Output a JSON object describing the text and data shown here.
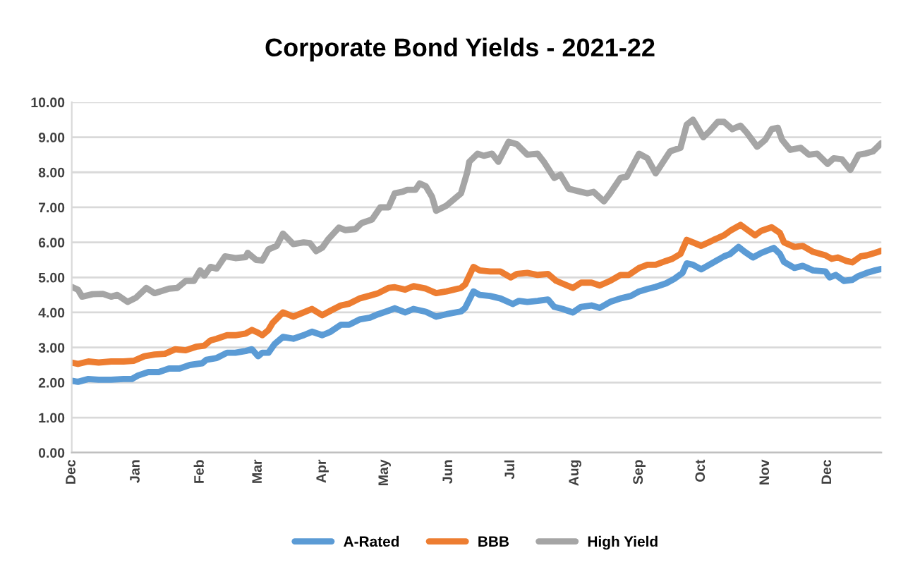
{
  "chart_data": {
    "type": "line",
    "title": "Corporate Bond Yields - 2021-22",
    "xlim": [
      "2021-12-01",
      "2022-12-27"
    ],
    "xticks": [
      {
        "value": "2021-12-01",
        "label": "Dec"
      },
      {
        "value": "2022-01-01",
        "label": "Jan"
      },
      {
        "value": "2022-02-01",
        "label": "Feb"
      },
      {
        "value": "2022-03-01",
        "label": "Mar"
      },
      {
        "value": "2022-04-01",
        "label": "Apr"
      },
      {
        "value": "2022-05-01",
        "label": "May"
      },
      {
        "value": "2022-06-01",
        "label": "Jun"
      },
      {
        "value": "2022-07-01",
        "label": "Jul"
      },
      {
        "value": "2022-08-01",
        "label": "Aug"
      },
      {
        "value": "2022-09-01",
        "label": "Sep"
      },
      {
        "value": "2022-10-01",
        "label": "Oct"
      },
      {
        "value": "2022-11-01",
        "label": "Nov"
      },
      {
        "value": "2022-12-01",
        "label": "Dec"
      }
    ],
    "ylim": [
      0,
      10
    ],
    "yticks": [
      {
        "value": 0,
        "label": "0.00"
      },
      {
        "value": 1,
        "label": "1.00"
      },
      {
        "value": 2,
        "label": "2.00"
      },
      {
        "value": 3,
        "label": "3.00"
      },
      {
        "value": 4,
        "label": "4.00"
      },
      {
        "value": 5,
        "label": "5.00"
      },
      {
        "value": 6,
        "label": "6.00"
      },
      {
        "value": 7,
        "label": "7.00"
      },
      {
        "value": 8,
        "label": "8.00"
      },
      {
        "value": 9,
        "label": "9.00"
      },
      {
        "value": 10,
        "label": "10.00"
      }
    ],
    "grid": "y",
    "legend": "bottom",
    "marker": "none",
    "line_style": "solid",
    "series": [
      {
        "name": "A-Rated",
        "color": "#5b9bd5",
        "x": [
          "2021-12-01",
          "2021-12-04",
          "2021-12-09",
          "2021-12-14",
          "2021-12-20",
          "2021-12-26",
          "2021-12-30",
          "2022-01-02",
          "2022-01-07",
          "2022-01-12",
          "2022-01-17",
          "2022-01-22",
          "2022-01-27",
          "2022-02-02",
          "2022-02-04",
          "2022-02-09",
          "2022-02-14",
          "2022-02-18",
          "2022-02-23",
          "2022-02-26",
          "2022-03-01",
          "2022-03-03",
          "2022-03-06",
          "2022-03-09",
          "2022-03-13",
          "2022-03-18",
          "2022-03-23",
          "2022-03-27",
          "2022-04-01",
          "2022-04-05",
          "2022-04-10",
          "2022-04-14",
          "2022-04-19",
          "2022-04-24",
          "2022-04-28",
          "2022-05-03",
          "2022-05-06",
          "2022-05-11",
          "2022-05-15",
          "2022-05-21",
          "2022-05-26",
          "2022-05-31",
          "2022-06-07",
          "2022-06-09",
          "2022-06-13",
          "2022-06-16",
          "2022-06-21",
          "2022-06-26",
          "2022-07-02",
          "2022-07-05",
          "2022-07-09",
          "2022-07-14",
          "2022-07-19",
          "2022-07-22",
          "2022-07-26",
          "2022-07-31",
          "2022-08-04",
          "2022-08-09",
          "2022-08-13",
          "2022-08-18",
          "2022-08-23",
          "2022-08-28",
          "2022-09-01",
          "2022-09-05",
          "2022-09-09",
          "2022-09-14",
          "2022-09-18",
          "2022-09-22",
          "2022-09-24",
          "2022-09-27",
          "2022-10-01",
          "2022-10-07",
          "2022-10-12",
          "2022-10-15",
          "2022-10-19",
          "2022-10-22",
          "2022-10-26",
          "2022-10-30",
          "2022-11-05",
          "2022-11-08",
          "2022-11-10",
          "2022-11-15",
          "2022-11-19",
          "2022-11-24",
          "2022-11-30",
          "2022-12-02",
          "2022-12-05",
          "2022-12-09",
          "2022-12-13",
          "2022-12-16",
          "2022-12-20",
          "2022-12-24",
          "2022-12-27"
        ],
        "values": [
          2.05,
          2.02,
          2.1,
          2.08,
          2.08,
          2.1,
          2.1,
          2.2,
          2.3,
          2.3,
          2.4,
          2.4,
          2.5,
          2.55,
          2.65,
          2.7,
          2.85,
          2.85,
          2.9,
          2.95,
          2.75,
          2.85,
          2.85,
          3.1,
          3.3,
          3.25,
          3.35,
          3.45,
          3.35,
          3.45,
          3.65,
          3.65,
          3.8,
          3.85,
          3.95,
          4.05,
          4.12,
          4.0,
          4.1,
          4.02,
          3.88,
          3.95,
          4.03,
          4.13,
          4.6,
          4.5,
          4.47,
          4.4,
          4.24,
          4.33,
          4.3,
          4.33,
          4.37,
          4.16,
          4.1,
          4.0,
          4.16,
          4.2,
          4.13,
          4.3,
          4.4,
          4.47,
          4.6,
          4.67,
          4.73,
          4.83,
          4.96,
          5.13,
          5.4,
          5.36,
          5.23,
          5.43,
          5.6,
          5.67,
          5.87,
          5.73,
          5.57,
          5.7,
          5.84,
          5.67,
          5.44,
          5.27,
          5.33,
          5.2,
          5.17,
          5.0,
          5.07,
          4.9,
          4.93,
          5.04,
          5.13,
          5.2,
          5.24
        ]
      },
      {
        "name": "BBB",
        "color": "#ed7d31",
        "x": [
          "2021-12-01",
          "2021-12-04",
          "2021-12-09",
          "2021-12-14",
          "2021-12-20",
          "2021-12-26",
          "2021-12-31",
          "2022-01-05",
          "2022-01-10",
          "2022-01-15",
          "2022-01-20",
          "2022-01-25",
          "2022-01-30",
          "2022-02-03",
          "2022-02-06",
          "2022-02-09",
          "2022-02-14",
          "2022-02-18",
          "2022-02-23",
          "2022-02-26",
          "2022-03-01",
          "2022-03-03",
          "2022-03-06",
          "2022-03-08",
          "2022-03-13",
          "2022-03-18",
          "2022-03-23",
          "2022-03-27",
          "2022-04-01",
          "2022-04-05",
          "2022-04-10",
          "2022-04-14",
          "2022-04-19",
          "2022-04-24",
          "2022-04-28",
          "2022-05-03",
          "2022-05-06",
          "2022-05-11",
          "2022-05-15",
          "2022-05-21",
          "2022-05-26",
          "2022-05-31",
          "2022-06-07",
          "2022-06-09",
          "2022-06-13",
          "2022-06-16",
          "2022-06-21",
          "2022-06-26",
          "2022-07-01",
          "2022-07-04",
          "2022-07-09",
          "2022-07-14",
          "2022-07-19",
          "2022-07-23",
          "2022-07-27",
          "2022-07-31",
          "2022-08-04",
          "2022-08-09",
          "2022-08-13",
          "2022-08-18",
          "2022-08-23",
          "2022-08-27",
          "2022-09-01",
          "2022-09-05",
          "2022-09-09",
          "2022-09-14",
          "2022-09-17",
          "2022-09-21",
          "2022-09-24",
          "2022-09-27",
          "2022-10-01",
          "2022-10-07",
          "2022-10-12",
          "2022-10-15",
          "2022-10-20",
          "2022-10-23",
          "2022-10-27",
          "2022-10-30",
          "2022-11-04",
          "2022-11-08",
          "2022-11-10",
          "2022-11-15",
          "2022-11-19",
          "2022-11-24",
          "2022-11-30",
          "2022-12-03",
          "2022-12-06",
          "2022-12-10",
          "2022-12-13",
          "2022-12-17",
          "2022-12-20",
          "2022-12-24",
          "2022-12-27"
        ],
        "values": [
          2.57,
          2.53,
          2.6,
          2.57,
          2.6,
          2.6,
          2.62,
          2.75,
          2.8,
          2.82,
          2.95,
          2.92,
          3.02,
          3.05,
          3.2,
          3.25,
          3.35,
          3.35,
          3.4,
          3.5,
          3.42,
          3.35,
          3.5,
          3.7,
          4.0,
          3.88,
          4.0,
          4.1,
          3.92,
          4.05,
          4.2,
          4.25,
          4.4,
          4.48,
          4.55,
          4.7,
          4.72,
          4.65,
          4.75,
          4.68,
          4.55,
          4.6,
          4.7,
          4.8,
          5.3,
          5.2,
          5.17,
          5.17,
          5.0,
          5.1,
          5.13,
          5.07,
          5.1,
          4.9,
          4.8,
          4.7,
          4.85,
          4.85,
          4.77,
          4.9,
          5.07,
          5.07,
          5.27,
          5.36,
          5.36,
          5.47,
          5.53,
          5.67,
          6.07,
          6.0,
          5.9,
          6.07,
          6.2,
          6.33,
          6.5,
          6.37,
          6.2,
          6.33,
          6.43,
          6.27,
          6.0,
          5.87,
          5.9,
          5.73,
          5.63,
          5.53,
          5.57,
          5.47,
          5.43,
          5.6,
          5.63,
          5.7,
          5.76
        ]
      },
      {
        "name": "High Yield",
        "color": "#a5a5a5",
        "x": [
          "2021-12-01",
          "2021-12-04",
          "2021-12-06",
          "2021-12-11",
          "2021-12-16",
          "2021-12-20",
          "2021-12-23",
          "2021-12-28",
          "2022-01-01",
          "2022-01-06",
          "2022-01-10",
          "2022-01-17",
          "2022-01-21",
          "2022-01-25",
          "2022-01-29",
          "2022-02-01",
          "2022-02-03",
          "2022-02-06",
          "2022-02-09",
          "2022-02-13",
          "2022-02-18",
          "2022-02-23",
          "2022-02-24",
          "2022-02-28",
          "2022-03-03",
          "2022-03-06",
          "2022-03-10",
          "2022-03-13",
          "2022-03-18",
          "2022-03-23",
          "2022-03-26",
          "2022-03-29",
          "2022-04-01",
          "2022-04-04",
          "2022-04-09",
          "2022-04-12",
          "2022-04-17",
          "2022-04-20",
          "2022-04-25",
          "2022-04-29",
          "2022-05-03",
          "2022-05-06",
          "2022-05-10",
          "2022-05-12",
          "2022-05-16",
          "2022-05-18",
          "2022-05-21",
          "2022-05-24",
          "2022-05-26",
          "2022-05-31",
          "2022-06-07",
          "2022-06-10",
          "2022-06-11",
          "2022-06-15",
          "2022-06-18",
          "2022-06-22",
          "2022-06-25",
          "2022-06-30",
          "2022-07-04",
          "2022-07-09",
          "2022-07-14",
          "2022-07-17",
          "2022-07-22",
          "2022-07-25",
          "2022-07-29",
          "2022-08-02",
          "2022-08-07",
          "2022-08-10",
          "2022-08-15",
          "2022-08-18",
          "2022-08-23",
          "2022-08-26",
          "2022-09-01",
          "2022-09-05",
          "2022-09-09",
          "2022-09-13",
          "2022-09-16",
          "2022-09-21",
          "2022-09-24",
          "2022-09-27",
          "2022-10-02",
          "2022-10-05",
          "2022-10-09",
          "2022-10-12",
          "2022-10-16",
          "2022-10-20",
          "2022-10-23",
          "2022-10-28",
          "2022-11-01",
          "2022-11-04",
          "2022-11-07",
          "2022-11-09",
          "2022-11-13",
          "2022-11-18",
          "2022-11-22",
          "2022-11-26",
          "2022-12-01",
          "2022-12-04",
          "2022-12-08",
          "2022-12-12",
          "2022-12-16",
          "2022-12-19",
          "2022-12-23",
          "2022-12-27"
        ],
        "values": [
          4.73,
          4.65,
          4.45,
          4.52,
          4.53,
          4.45,
          4.5,
          4.3,
          4.42,
          4.7,
          4.55,
          4.68,
          4.7,
          4.9,
          4.9,
          5.2,
          5.05,
          5.3,
          5.25,
          5.6,
          5.55,
          5.58,
          5.7,
          5.5,
          5.48,
          5.8,
          5.9,
          6.25,
          5.95,
          6.0,
          5.98,
          5.75,
          5.85,
          6.1,
          6.42,
          6.35,
          6.38,
          6.55,
          6.65,
          7.0,
          7.0,
          7.4,
          7.45,
          7.5,
          7.5,
          7.68,
          7.6,
          7.3,
          6.9,
          7.05,
          7.4,
          8.0,
          8.3,
          8.53,
          8.47,
          8.53,
          8.3,
          8.87,
          8.8,
          8.5,
          8.53,
          8.3,
          7.84,
          7.93,
          7.53,
          7.47,
          7.4,
          7.44,
          7.17,
          7.4,
          7.84,
          7.87,
          8.53,
          8.4,
          7.97,
          8.33,
          8.6,
          8.7,
          9.36,
          9.5,
          9.0,
          9.17,
          9.44,
          9.44,
          9.23,
          9.33,
          9.13,
          8.73,
          8.93,
          9.23,
          9.27,
          8.93,
          8.64,
          8.7,
          8.5,
          8.53,
          8.24,
          8.4,
          8.37,
          8.07,
          8.5,
          8.53,
          8.6,
          8.83
        ]
      }
    ]
  }
}
